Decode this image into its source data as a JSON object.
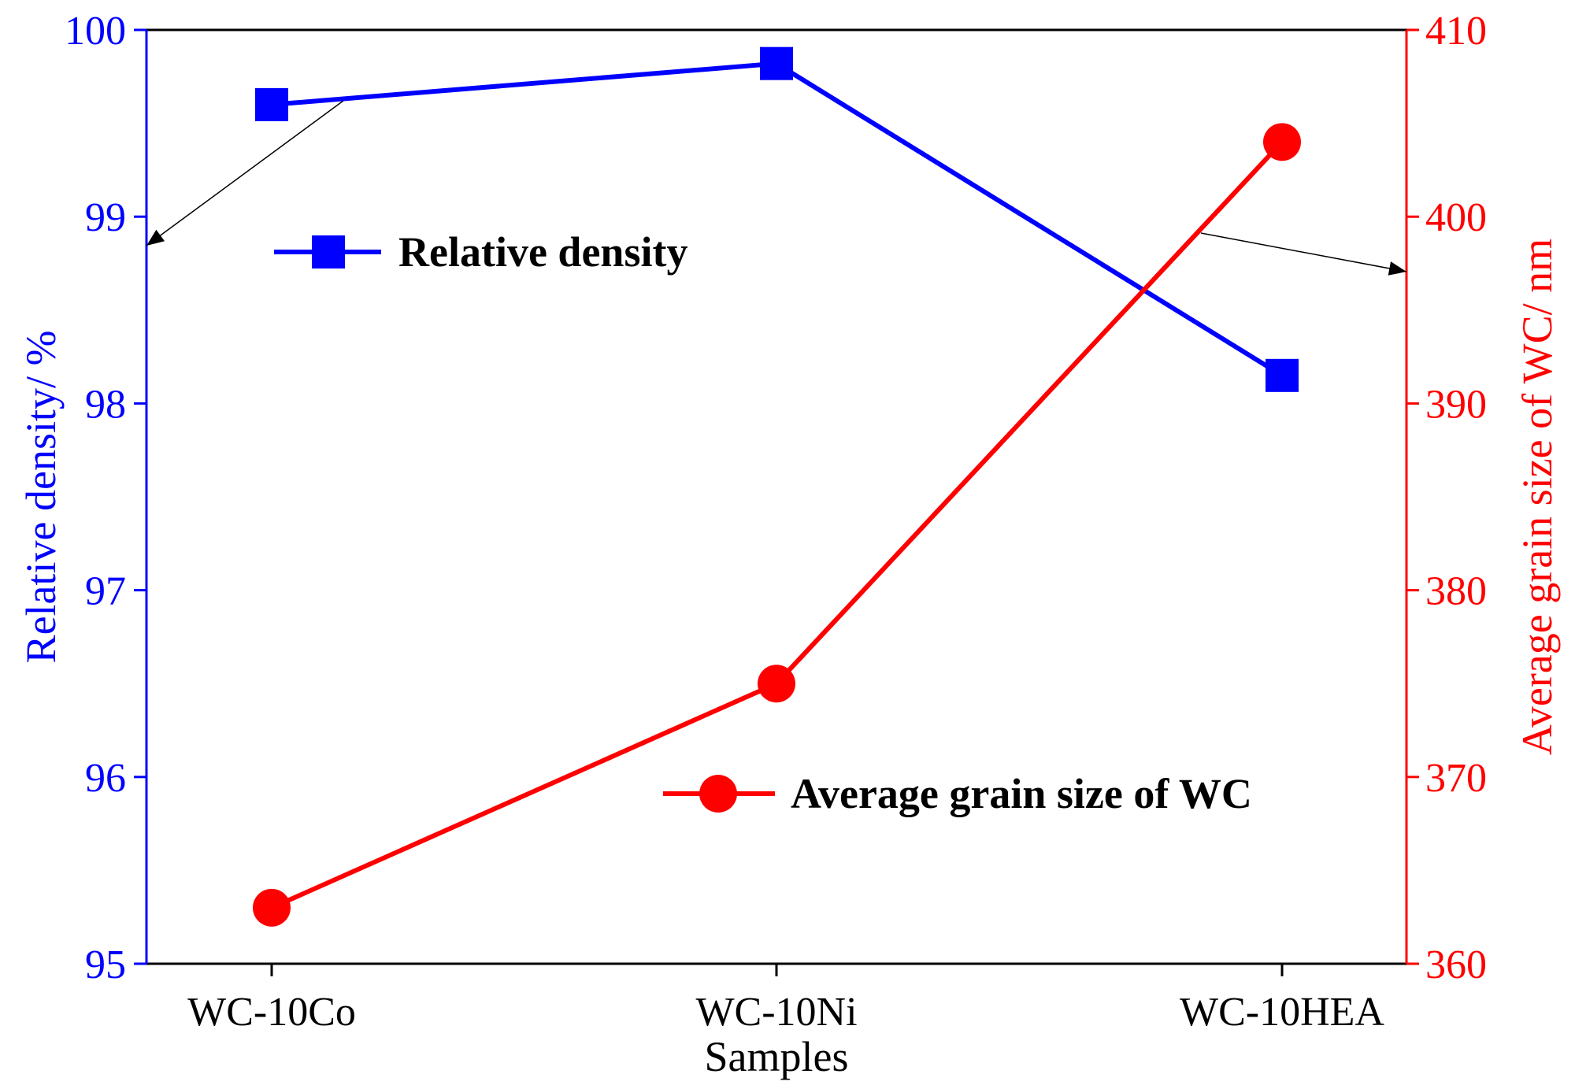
{
  "chart_data": {
    "type": "line",
    "categories": [
      "WC-10Co",
      "WC-10Ni",
      "WC-10HEA"
    ],
    "xlabel": "Samples",
    "series": [
      {
        "name": "Relative density",
        "axis": "left",
        "marker": "square",
        "color": "#0000ff",
        "values": [
          99.6,
          99.82,
          98.15
        ]
      },
      {
        "name": "Average grain size of WC",
        "axis": "right",
        "marker": "circle",
        "color": "#ff0000",
        "values": [
          363,
          375,
          404
        ]
      }
    ],
    "y_left": {
      "label": "Relative density/ %",
      "ylim": [
        95,
        100
      ],
      "ticks": [
        "95",
        "96",
        "97",
        "98",
        "99",
        "100"
      ],
      "color": "#0000ff"
    },
    "y_right": {
      "label": "Average grain size of WC/ nm",
      "ylim": [
        360,
        410
      ],
      "ticks": [
        "360",
        "370",
        "380",
        "390",
        "400",
        "410"
      ],
      "color": "#ff0000"
    },
    "annotations": [
      {
        "points_to": "left axis",
        "from_series": "Relative density"
      },
      {
        "points_to": "right axis",
        "from_series": "Average grain size of WC"
      }
    ]
  }
}
